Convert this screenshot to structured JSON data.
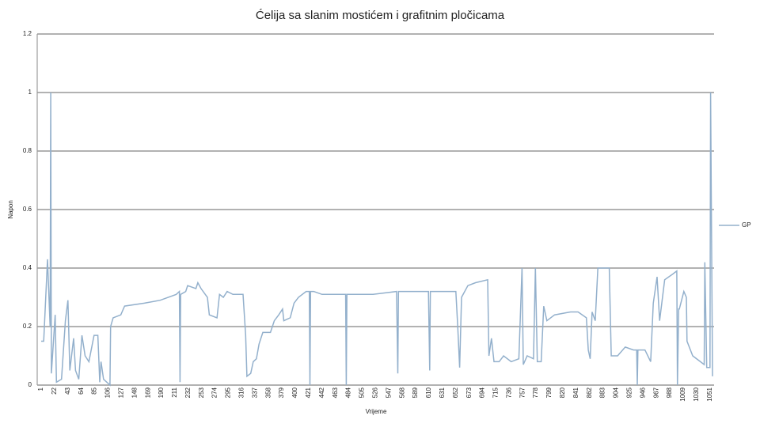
{
  "chart_data": {
    "type": "line",
    "title": "Ćelija sa slanim mostićem i grafitnim pločicama",
    "x_label": "Vrijeme",
    "y_label": "Napon",
    "x": [
      1,
      5,
      11,
      15,
      16,
      17,
      23,
      25,
      33,
      39,
      43,
      46,
      52,
      55,
      60,
      65,
      70,
      76,
      84,
      90,
      93,
      95,
      99,
      109,
      110,
      114,
      126,
      132,
      163,
      188,
      213,
      218,
      219,
      220,
      228,
      231,
      244,
      247,
      252,
      262,
      265,
      277,
      281,
      287,
      293,
      302,
      318,
      322,
      324,
      330,
      334,
      339,
      343,
      349,
      361,
      367,
      374,
      380,
      382,
      392,
      398,
      405,
      417,
      422,
      423,
      424,
      429,
      442,
      460,
      479,
      480,
      481,
      522,
      559,
      561,
      562,
      609,
      611,
      612,
      652,
      655,
      658,
      661,
      671,
      683,
      702,
      704,
      708,
      712,
      720,
      727,
      739,
      751,
      756,
      758,
      764,
      774,
      777,
      780,
      786,
      790,
      795,
      807,
      832,
      844,
      857,
      860,
      863,
      866,
      871,
      875,
      893,
      896,
      906,
      918,
      931,
      936,
      937,
      938,
      949,
      958,
      962,
      968,
      972,
      980,
      993,
      999,
      1000,
      1002,
      1003,
      1010,
      1014,
      1015,
      1024,
      1036,
      1042,
      1043,
      1046,
      1051,
      1052,
      1055
    ],
    "series": [
      {
        "name": "GP",
        "color": "#93b0cc",
        "values": [
          0.15,
          0.15,
          0.43,
          0.2,
          1.0,
          0.04,
          0.24,
          0.01,
          0.02,
          0.22,
          0.29,
          0.05,
          0.16,
          0.05,
          0.02,
          0.17,
          0.1,
          0.08,
          0.17,
          0.17,
          0.01,
          0.08,
          0.02,
          0.0,
          0.2,
          0.23,
          0.24,
          0.27,
          0.28,
          0.29,
          0.31,
          0.32,
          0.01,
          0.31,
          0.32,
          0.34,
          0.33,
          0.35,
          0.33,
          0.3,
          0.24,
          0.23,
          0.31,
          0.3,
          0.32,
          0.31,
          0.31,
          0.17,
          0.03,
          0.04,
          0.08,
          0.09,
          0.14,
          0.18,
          0.18,
          0.22,
          0.24,
          0.26,
          0.22,
          0.23,
          0.28,
          0.3,
          0.32,
          0.32,
          0.0,
          0.32,
          0.32,
          0.31,
          0.31,
          0.31,
          0.0,
          0.31,
          0.31,
          0.32,
          0.04,
          0.32,
          0.32,
          0.05,
          0.32,
          0.32,
          0.2,
          0.06,
          0.3,
          0.34,
          0.35,
          0.36,
          0.1,
          0.16,
          0.08,
          0.08,
          0.1,
          0.08,
          0.09,
          0.4,
          0.07,
          0.1,
          0.09,
          0.4,
          0.08,
          0.08,
          0.27,
          0.22,
          0.24,
          0.25,
          0.25,
          0.23,
          0.12,
          0.09,
          0.25,
          0.22,
          0.4,
          0.4,
          0.1,
          0.1,
          0.13,
          0.12,
          0.12,
          0.0,
          0.12,
          0.12,
          0.08,
          0.28,
          0.37,
          0.22,
          0.36,
          0.38,
          0.39,
          0.0,
          0.26,
          0.26,
          0.32,
          0.3,
          0.15,
          0.1,
          0.08,
          0.07,
          0.42,
          0.06,
          0.06,
          1.0,
          0.03
        ]
      }
    ],
    "xlim": [
      1,
      1060
    ],
    "xticks": [
      1,
      22,
      43,
      64,
      85,
      106,
      127,
      148,
      169,
      190,
      211,
      232,
      253,
      274,
      295,
      316,
      337,
      358,
      379,
      400,
      421,
      442,
      463,
      484,
      505,
      526,
      547,
      568,
      589,
      610,
      631,
      652,
      673,
      694,
      715,
      736,
      757,
      778,
      799,
      820,
      841,
      862,
      883,
      904,
      925,
      946,
      967,
      988,
      1009,
      1030,
      1051
    ],
    "ylim": [
      0,
      1.2
    ],
    "yticks": [
      0,
      0.2,
      0.4,
      0.6,
      0.8,
      1,
      1.2
    ],
    "grid": true,
    "legend": "right"
  }
}
